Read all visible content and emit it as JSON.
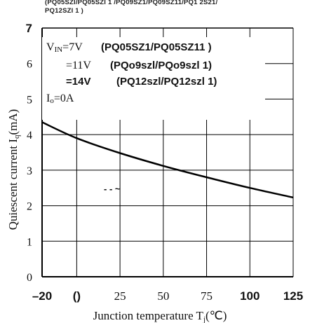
{
  "header": {
    "line1": "(PQ05SZI/PQ05SZI  1  /PQ09SZ1/PQ09SZ11/PQ1 2S21/",
    "line2": "PQ12SZI 1 )"
  },
  "chart_data": {
    "type": "line",
    "ylabel": "Quiescent current I",
    "ylabel_sub": "q",
    "ylabel_unit": "(mA)",
    "xlabel": "Junction temperature T",
    "xlabel_sub": "j",
    "xlabel_unit": "(℃)",
    "xlim": [
      -20,
      125
    ],
    "ylim": [
      0,
      7
    ],
    "x_ticks": [
      {
        "value": -20,
        "label": "–20"
      },
      {
        "value": 0,
        "label": "()"
      },
      {
        "value": 25,
        "label": "25"
      },
      {
        "value": 50,
        "label": "50"
      },
      {
        "value": 75,
        "label": "75"
      },
      {
        "value": 100,
        "label": "100"
      },
      {
        "value": 125,
        "label": "125"
      }
    ],
    "y_ticks": [
      {
        "value": 0,
        "label": "0"
      },
      {
        "value": 1,
        "label": "1"
      },
      {
        "value": 2,
        "label": "2"
      },
      {
        "value": 3,
        "label": "3"
      },
      {
        "value": 4,
        "label": "4"
      },
      {
        "value": 5,
        "label": "5"
      },
      {
        "value": 6,
        "label": "6"
      },
      {
        "value": 7,
        "label": "7"
      }
    ],
    "series": [
      {
        "x": [
          -20,
          0,
          25,
          50,
          75,
          100,
          125
        ],
        "y": [
          4.35,
          3.9,
          3.48,
          3.12,
          2.8,
          2.5,
          2.23
        ]
      }
    ],
    "annotations": {
      "vin_label": "V",
      "vin_sub": "IN",
      "vin_eq": "=7V",
      "vin1_parts": "(PQ05SZ1/PQ05SZ11 )",
      "vin2_value": "=11V",
      "vin2_parts": "(PQo9szl/PQo9szl  1)",
      "vin3_value": "=14V",
      "vin3_parts": "(PQ12szl/PQ12szl  1)",
      "io_label": "I",
      "io_sub": "o",
      "io_value": "=0A",
      "dash_mark": "- - ~"
    },
    "grid": true,
    "colors": {
      "line": "#000000",
      "grid": "#000000",
      "axis": "#000000"
    }
  }
}
